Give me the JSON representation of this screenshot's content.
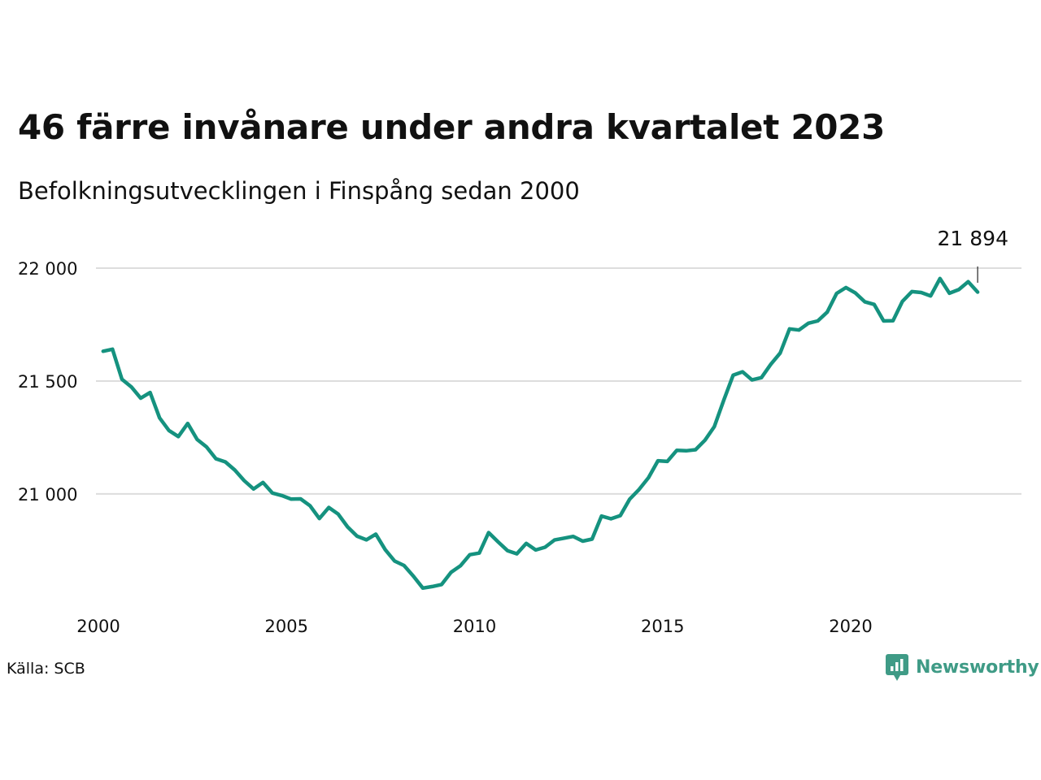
{
  "title": "46 färre invånare under andra kvartalet 2023",
  "subtitle": "Befolkningsutvecklingen i Finspång sedan 2000",
  "source": "Källa: SCB",
  "brand": {
    "name": "Newsworthy",
    "icon": "newsworthy-logo-icon",
    "color": "#3f9b86"
  },
  "colors": {
    "line": "#15927f",
    "grid": "#dddddd",
    "text": "#111111"
  },
  "chart_data": {
    "type": "line",
    "title": "46 färre invånare under andra kvartalet 2023",
    "subtitle": "Befolkningsutvecklingen i Finspång sedan 2000",
    "xlim": [
      2000,
      2024
    ],
    "ylim": [
      20550,
      22000
    ],
    "x_ticks": [
      2000,
      2005,
      2010,
      2015,
      2020
    ],
    "x_tick_labels": [
      "2000",
      "2005",
      "2010",
      "2015",
      "2020"
    ],
    "y_ticks": [
      21000,
      21500,
      22000
    ],
    "y_tick_labels": [
      "21 000",
      "21 500",
      "22 000"
    ],
    "grid": "horizontal",
    "annotation": {
      "x": 2023.375,
      "y": 21894,
      "label": "21 894"
    },
    "series": [
      {
        "x": [
          2000.125,
          2000.375,
          2000.625,
          2000.875,
          2001.125,
          2001.375,
          2001.625,
          2001.875,
          2002.125,
          2002.375,
          2002.625,
          2002.875,
          2003.125,
          2003.375,
          2003.625,
          2003.875,
          2004.125,
          2004.375,
          2004.625,
          2004.875,
          2005.125,
          2005.375,
          2005.625,
          2005.875,
          2006.125,
          2006.375,
          2006.625,
          2006.875,
          2007.125,
          2007.375,
          2007.625,
          2007.875,
          2008.125,
          2008.375,
          2008.625,
          2008.875,
          2009.125,
          2009.375,
          2009.625,
          2009.875,
          2010.125,
          2010.375,
          2010.625,
          2010.875,
          2011.125,
          2011.375,
          2011.625,
          2011.875,
          2012.125,
          2012.375,
          2012.625,
          2012.875,
          2013.125,
          2013.375,
          2013.625,
          2013.875,
          2014.125,
          2014.375,
          2014.625,
          2014.875,
          2015.125,
          2015.375,
          2015.625,
          2015.875,
          2016.125,
          2016.375,
          2016.625,
          2016.875,
          2017.125,
          2017.375,
          2017.625,
          2017.875,
          2018.125,
          2018.375,
          2018.625,
          2018.875,
          2019.125,
          2019.375,
          2019.625,
          2019.875,
          2020.125,
          2020.375,
          2020.625,
          2020.875,
          2021.125,
          2021.375,
          2021.625,
          2021.875,
          2022.125,
          2022.375,
          2022.625,
          2022.875,
          2023.125,
          2023.375
        ],
        "values": [
          21632,
          21641,
          21508,
          21474,
          21424,
          21449,
          21337,
          21281,
          21254,
          21312,
          21241,
          21208,
          21156,
          21142,
          21106,
          21059,
          21022,
          21051,
          21004,
          20993,
          20977,
          20978,
          20948,
          20891,
          20940,
          20911,
          20854,
          20813,
          20797,
          20822,
          20753,
          20703,
          20683,
          20636,
          20583,
          20590,
          20599,
          20653,
          20682,
          20731,
          20738,
          20829,
          20788,
          20749,
          20735,
          20781,
          20752,
          20764,
          20796,
          20804,
          20812,
          20791,
          20800,
          20902,
          20890,
          20904,
          20977,
          21020,
          21072,
          21147,
          21144,
          21193,
          21191,
          21196,
          21238,
          21298,
          21415,
          21526,
          21541,
          21505,
          21515,
          21574,
          21624,
          21731,
          21726,
          21756,
          21766,
          21805,
          21888,
          21914,
          21890,
          21851,
          21839,
          21766,
          21767,
          21853,
          21896,
          21892,
          21877,
          21954,
          21889,
          21905,
          21940,
          21894
        ]
      }
    ]
  }
}
